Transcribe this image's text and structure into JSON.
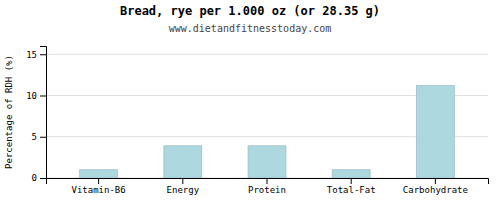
{
  "chart_data": {
    "type": "bar",
    "title": "Bread, rye per 1.000 oz (or 28.35 g)",
    "subtitle": "www.dietandfitnesstoday.com",
    "categories": [
      "Vitamin-B6",
      "Energy",
      "Protein",
      "Total-Fat",
      "Carbohydrate"
    ],
    "values": [
      1.0,
      3.9,
      3.9,
      1.0,
      11.2
    ],
    "color": "#add8e0",
    "ylabel": "Percentage of RDH (%)",
    "ylim": [
      0,
      16
    ],
    "yticks": [
      0,
      5,
      10,
      15
    ],
    "grid": true
  }
}
